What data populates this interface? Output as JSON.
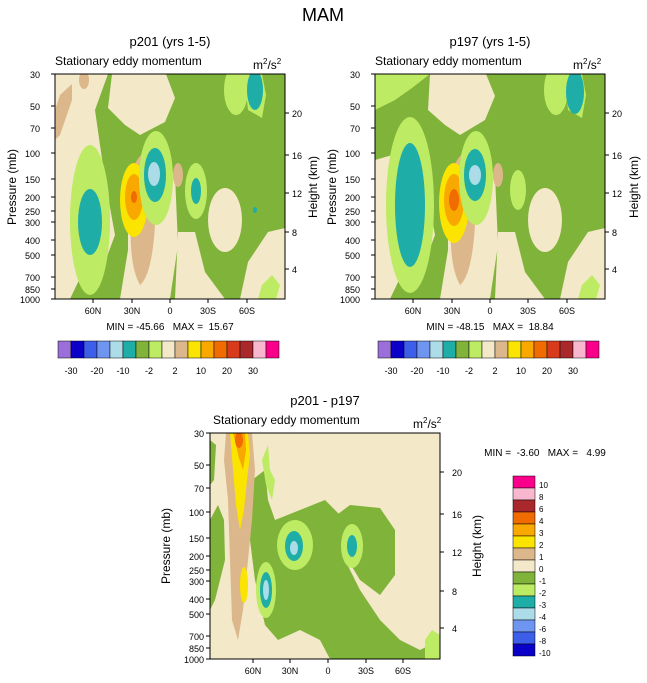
{
  "page_title": "MAM",
  "colors": {
    "c_m30": "#9B6FD9",
    "c_m20": "#0A00C8",
    "c_m15": "#3C5EE8",
    "c_m10": "#6E96F0",
    "c_m5": "#ABDCE8",
    "c_m4": "#1FADA8",
    "c_m2": "#7FB33A",
    "c_m1": "#BDEB63",
    "c_0": "#F3E8C8",
    "c_2": "#DDB78C",
    "c_4": "#FAE400",
    "c_10": "#F9A800",
    "c_15": "#F06B00",
    "c_20": "#D83A1C",
    "c_25": "#A8282C",
    "c_30": "#F8B7CE",
    "c_max": "#FA008A",
    "d_m10": "#9B6FD9",
    "d_m8": "#0A00C8",
    "d_m6": "#3C5EE8",
    "d_m4": "#6E96F0",
    "d_m3": "#ABDCE8",
    "d_m2": "#1FADA8",
    "d_m1": "#BDEB63",
    "d_0": "#7FB33A",
    "d_1": "#F3E8C8",
    "d_2": "#DDB78C",
    "d_3": "#FAE400",
    "d_4": "#F9A800",
    "d_6": "#F06B00",
    "d_8": "#D83A1C",
    "d_10": "#A8282C",
    "d_12": "#F8B7CE",
    "d_max": "#FA008A"
  },
  "chart_data": [
    {
      "type": "contour",
      "title": "p201 (yrs 1-5)",
      "subtitle_left": "Stationary eddy momentum",
      "units_base": "m",
      "units_sup1": "2",
      "units_mid": "/s",
      "units_sup2": "2",
      "ylabel_left": "Pressure (mb)",
      "ylabel_right": "Height (km)",
      "pressure_ticks": [
        "30",
        "50",
        "70",
        "100",
        "150",
        "200",
        "250",
        "300",
        "400",
        "500",
        "700",
        "850",
        "1000"
      ],
      "height_ticks": [
        "20",
        "16",
        "12",
        "8",
        "4"
      ],
      "lat_ticks": [
        "60N",
        "30N",
        "0",
        "30S",
        "60S"
      ],
      "ylim": [
        1000,
        30
      ],
      "xlim": [
        "90N",
        "90S"
      ],
      "stats": "MIN = -45.66   MAX =  15.67",
      "min": -45.66,
      "max": 15.67
    },
    {
      "type": "contour",
      "title": "p197 (yrs 1-5)",
      "subtitle_left": "Stationary eddy momentum",
      "units_base": "m",
      "units_sup1": "2",
      "units_mid": "/s",
      "units_sup2": "2",
      "ylabel_left": "Pressure (mb)",
      "ylabel_right": "Height (km)",
      "pressure_ticks": [
        "30",
        "50",
        "70",
        "100",
        "150",
        "200",
        "250",
        "300",
        "400",
        "500",
        "700",
        "850",
        "1000"
      ],
      "height_ticks": [
        "20",
        "16",
        "12",
        "8",
        "4"
      ],
      "lat_ticks": [
        "60N",
        "30N",
        "0",
        "30S",
        "60S"
      ],
      "ylim": [
        1000,
        30
      ],
      "xlim": [
        "90N",
        "90S"
      ],
      "stats": "MIN = -48.15   MAX =  18.84",
      "min": -48.15,
      "max": 18.84
    },
    {
      "type": "contour",
      "title": "p201 - p197",
      "subtitle_left": "Stationary eddy momentum",
      "units_base": "m",
      "units_sup1": "2",
      "units_mid": "/s",
      "units_sup2": "2",
      "ylabel_left": "Pressure (mb)",
      "ylabel_right": "Height (km)",
      "pressure_ticks": [
        "30",
        "50",
        "70",
        "100",
        "150",
        "200",
        "250",
        "300",
        "400",
        "500",
        "700",
        "850",
        "1000"
      ],
      "height_ticks": [
        "20",
        "16",
        "12",
        "8",
        "4"
      ],
      "lat_ticks": [
        "60N",
        "30N",
        "0",
        "30S",
        "60S"
      ],
      "ylim": [
        1000,
        30
      ],
      "xlim": [
        "90N",
        "90S"
      ],
      "stats": "MIN =  -3.60   MAX =   4.99",
      "min": -3.6,
      "max": 4.99
    }
  ],
  "colorbar_top": {
    "labels": [
      "-30",
      "-20",
      "-10",
      "-2",
      "2",
      "10",
      "20",
      "30"
    ]
  },
  "colorbar_diff": {
    "labels": [
      "10",
      "8",
      "6",
      "4",
      "3",
      "2",
      "1",
      "0",
      "-1",
      "-2",
      "-3",
      "-4",
      "-6",
      "-8",
      "-10"
    ]
  }
}
